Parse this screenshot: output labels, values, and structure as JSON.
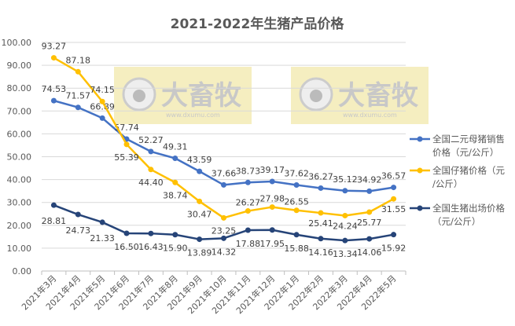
{
  "chart_data": {
    "type": "line",
    "title": "2021-2022年生猪产品价格",
    "xlabel": "",
    "ylabel": "",
    "ylim": [
      0,
      100
    ],
    "yticks": [
      "0.00",
      "10.00",
      "20.00",
      "30.00",
      "40.00",
      "50.00",
      "60.00",
      "70.00",
      "80.00",
      "90.00",
      "100.00"
    ],
    "grid": true,
    "legend_position": "right",
    "categories": [
      "2021年3月",
      "2021年4月",
      "2021年5月",
      "2021年6月",
      "2021年7月",
      "2021年8月",
      "2021年9月",
      "2021年10月",
      "2021年11月",
      "2021年12月",
      "2022年1月",
      "2022年2月",
      "2022年3月",
      "2022年4月",
      "2022年5月"
    ],
    "series": [
      {
        "name": "全国二元母猪销售价格（元/公斤）",
        "legend_lines": [
          "全国二元母猪销售",
          "价格（元/公斤）"
        ],
        "color": "#4472C4",
        "values": [
          74.53,
          71.57,
          66.89,
          57.74,
          52.27,
          49.31,
          43.59,
          37.66,
          38.73,
          39.17,
          37.62,
          36.27,
          35.12,
          34.92,
          36.57
        ]
      },
      {
        "name": "全国仔猪价格（元/公斤）",
        "legend_lines": [
          "全国仔猪价格（元",
          "/公斤）"
        ],
        "color": "#FFC000",
        "values": [
          93.27,
          87.18,
          74.15,
          55.39,
          44.4,
          38.74,
          30.47,
          23.25,
          26.27,
          27.98,
          26.55,
          25.41,
          24.24,
          25.77,
          31.55
        ]
      },
      {
        "name": "全国生猪出场价格（元/公斤）",
        "legend_lines": [
          "全国生猪出场价格",
          "（元/公斤）"
        ],
        "color": "#264478",
        "values": [
          28.81,
          24.73,
          21.33,
          16.5,
          16.43,
          15.9,
          13.89,
          14.32,
          17.88,
          17.95,
          15.88,
          14.16,
          13.34,
          14.06,
          15.92
        ]
      }
    ],
    "watermark": {
      "text": "大畜牧",
      "url": "www.dxumu.com"
    }
  }
}
